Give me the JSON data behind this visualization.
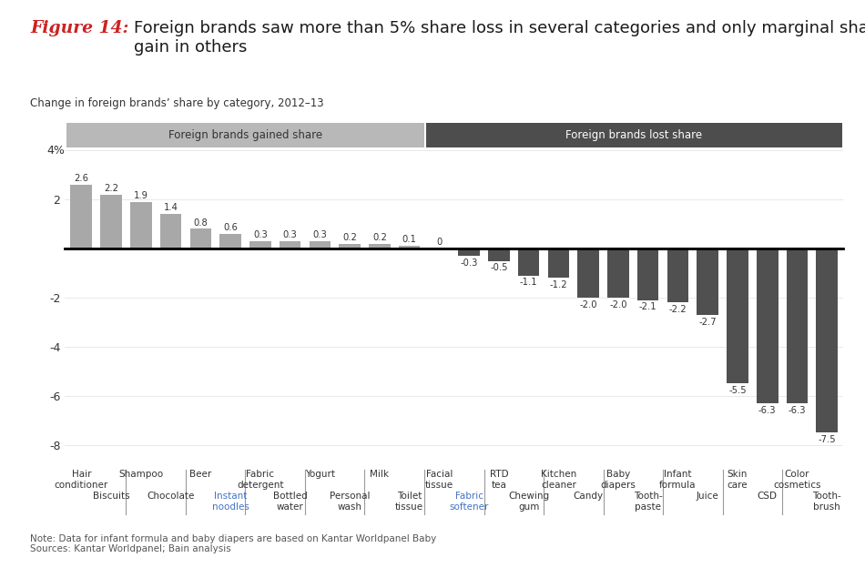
{
  "values": [
    2.6,
    2.2,
    1.9,
    1.4,
    0.8,
    0.6,
    0.3,
    0.3,
    0.3,
    0.2,
    0.2,
    0.1,
    0.0,
    -0.3,
    -0.5,
    -1.1,
    -1.2,
    -2.0,
    -2.0,
    -2.1,
    -2.2,
    -2.7,
    -5.5,
    -6.3,
    -6.3,
    -7.5
  ],
  "value_labels": [
    "2.6",
    "2.2",
    "1.9",
    "1.4",
    "0.8",
    "0.6",
    "0.3",
    "0.3",
    "0.3",
    "0.2",
    "0.2",
    "0.1",
    "0",
    "-0.3",
    "-0.5",
    "-1.1",
    "-1.2",
    "-2.0",
    "-2.0",
    "-2.1",
    "-2.2",
    "-2.7",
    "-5.5",
    "-6.3",
    "-6.3",
    "-7.5"
  ],
  "bar_color_gain": "#a8a8a8",
  "bar_color_loss": "#505050",
  "header_gain_color": "#b8b8b8",
  "header_loss_color": "#4d4d4d",
  "header_gain_text": "Foreign brands gained share",
  "header_loss_text": "Foreign brands lost share",
  "title_figure": "Figure 14:",
  "title_main": "Foreign brands saw more than 5% share loss in several categories and only marginal share\ngain in others",
  "subtitle": "Change in foreign brands’ share by category, 2012–13",
  "ylim": [
    -8.5,
    4.8
  ],
  "yticks": [
    -8,
    -6,
    -4,
    -2,
    0,
    2,
    4
  ],
  "ytick_labels": [
    "-8",
    "-6",
    "-4",
    "-2",
    "",
    "2",
    ""
  ],
  "note": "Note: Data for infant formula and baby diapers are based on Kantar Worldpanel Baby\nSources: Kantar Worldpanel; Bain analysis",
  "blue_label_color": "#4472c4",
  "row1_indices": [
    0,
    2,
    4,
    6,
    8,
    10,
    12,
    14,
    16,
    18,
    20,
    22,
    24
  ],
  "row1_labels": [
    "Hair\nconditioner",
    "Shampoo",
    "Beer",
    "Fabric\ndetergent",
    "Yogurt",
    "Milk",
    "Facial\ntissue",
    "RTD\ntea",
    "Kitchen\ncleaner",
    "Baby\ndiapers",
    "Infant\nformula",
    "Skin\ncare",
    "Color\ncosmetics"
  ],
  "row2_indices": [
    1,
    3,
    5,
    7,
    9,
    11,
    13,
    15,
    17,
    19,
    21,
    23,
    25
  ],
  "row2_labels": [
    "Biscuits",
    "Chocolate",
    "Instant\nnoodles",
    "Bottled\nwater",
    "Personal\nwash",
    "Toilet\ntissue",
    "Fabric\nsoftener",
    "Chewing\ngum",
    "Candy",
    "Tooth-\npaste",
    "Juice",
    "CSD",
    "Tooth-\nbrush"
  ],
  "blue_row2_labels": [
    "Instant\nnoodles",
    "Fabric\nsoftener"
  ],
  "separator_positions": [
    1.5,
    3.5,
    5.5,
    7.5,
    9.5,
    11.5,
    13.5,
    15.5,
    17.5,
    19.5,
    21.5,
    23.5
  ],
  "n_gain": 12,
  "n_bars": 26
}
